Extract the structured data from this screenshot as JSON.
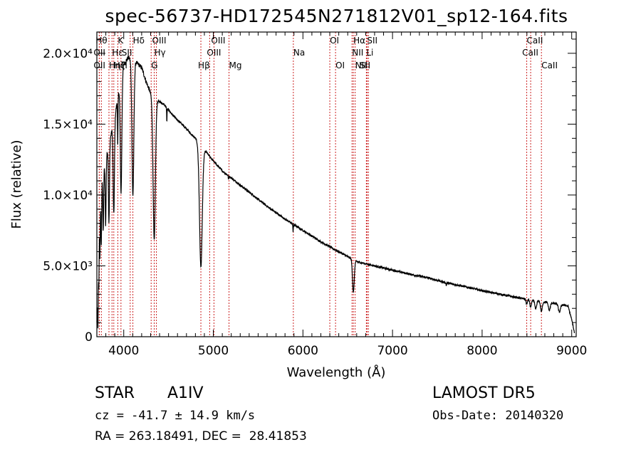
{
  "chart_data": {
    "type": "line",
    "title": "spec-56737-HD172545N271812V01_sp12-164.fits",
    "xlabel": "Wavelength (Å)",
    "ylabel": "Flux (relative)",
    "xlim": [
      3700,
      9050
    ],
    "ylim": [
      0,
      21500
    ],
    "x_ticks": [
      4000,
      5000,
      6000,
      7000,
      8000,
      9000
    ],
    "x_tick_labels": [
      "4000",
      "5000",
      "6000",
      "7000",
      "8000",
      "9000"
    ],
    "y_ticks": [
      0,
      5000,
      10000,
      15000,
      20000
    ],
    "y_tick_labels": [
      "0",
      "5.0×10³",
      "1.0×10⁴",
      "1.5×10⁴",
      "2.0×10⁴"
    ],
    "grid": false,
    "series": [
      {
        "continuum": [
          [
            3700,
            1000
          ],
          [
            3710,
            3000
          ],
          [
            3730,
            8000
          ],
          [
            3760,
            11000
          ],
          [
            3800,
            12500
          ],
          [
            3850,
            14000
          ],
          [
            3900,
            15500
          ],
          [
            3950,
            17500
          ],
          [
            4000,
            19200
          ],
          [
            4050,
            19700
          ],
          [
            4100,
            19500
          ],
          [
            4150,
            19300
          ],
          [
            4200,
            19000
          ],
          [
            4250,
            18000
          ],
          [
            4300,
            17200
          ],
          [
            4350,
            16700
          ],
          [
            4400,
            16600
          ],
          [
            4450,
            16400
          ],
          [
            4500,
            16000
          ],
          [
            4550,
            15600
          ],
          [
            4600,
            15300
          ],
          [
            4650,
            15000
          ],
          [
            4700,
            14700
          ],
          [
            4750,
            14300
          ],
          [
            4800,
            14000
          ],
          [
            4850,
            13600
          ],
          [
            4900,
            13200
          ],
          [
            4950,
            12800
          ],
          [
            5000,
            12400
          ],
          [
            5100,
            11700
          ],
          [
            5200,
            11200
          ],
          [
            5300,
            10700
          ],
          [
            5400,
            10200
          ],
          [
            5500,
            9700
          ],
          [
            5600,
            9200
          ],
          [
            5700,
            8750
          ],
          [
            5800,
            8300
          ],
          [
            5900,
            7900
          ],
          [
            6000,
            7500
          ],
          [
            6100,
            7100
          ],
          [
            6200,
            6700
          ],
          [
            6300,
            6350
          ],
          [
            6400,
            6000
          ],
          [
            6500,
            5650
          ],
          [
            6600,
            5300
          ],
          [
            6700,
            5150
          ],
          [
            6800,
            5000
          ],
          [
            7000,
            4700
          ],
          [
            7200,
            4400
          ],
          [
            7400,
            4150
          ],
          [
            7600,
            3800
          ],
          [
            7800,
            3550
          ],
          [
            8000,
            3250
          ],
          [
            8200,
            3000
          ],
          [
            8400,
            2750
          ],
          [
            8500,
            2650
          ],
          [
            8600,
            2550
          ],
          [
            8700,
            2450
          ],
          [
            8800,
            2350
          ],
          [
            8900,
            2250
          ],
          [
            8960,
            2150
          ],
          [
            9000,
            1200
          ],
          [
            9030,
            300
          ]
        ],
        "absorption": [
          {
            "x": 3712,
            "depth": 2800,
            "w": 4
          },
          {
            "x": 3722,
            "depth": 2600,
            "w": 4
          },
          {
            "x": 3734,
            "depth": 3000,
            "w": 4
          },
          {
            "x": 3750,
            "depth": 3500,
            "w": 5
          },
          {
            "x": 3771,
            "depth": 4000,
            "w": 6
          },
          {
            "x": 3798,
            "depth": 4500,
            "w": 7
          },
          {
            "x": 3835,
            "depth": 5500,
            "w": 8
          },
          {
            "x": 3889,
            "depth": 6500,
            "w": 10
          },
          {
            "x": 3933,
            "depth": 3500,
            "w": 4
          },
          {
            "x": 3970,
            "depth": 8000,
            "w": 12
          },
          {
            "x": 4102,
            "depth": 9500,
            "w": 15
          },
          {
            "x": 4340,
            "depth": 10000,
            "w": 18
          },
          {
            "x": 4861,
            "depth": 8600,
            "w": 22
          },
          {
            "x": 4481,
            "depth": 1000,
            "w": 3
          },
          {
            "x": 5169,
            "depth": 300,
            "w": 3
          },
          {
            "x": 5890,
            "depth": 500,
            "w": 4
          },
          {
            "x": 6563,
            "depth": 2300,
            "w": 14
          },
          {
            "x": 7600,
            "depth": 200,
            "w": 4
          },
          {
            "x": 8498,
            "depth": 350,
            "w": 10
          },
          {
            "x": 8542,
            "depth": 550,
            "w": 12
          },
          {
            "x": 8598,
            "depth": 600,
            "w": 14
          },
          {
            "x": 8662,
            "depth": 700,
            "w": 14
          },
          {
            "x": 8750,
            "depth": 550,
            "w": 14
          },
          {
            "x": 8863,
            "depth": 550,
            "w": 16
          }
        ]
      }
    ],
    "lines": [
      {
        "x": 3750,
        "row": 0,
        "label": "Hθ",
        "dx": -8
      },
      {
        "x": 3727,
        "row": 1,
        "label": "OII",
        "dx": -8
      },
      {
        "x": 3727,
        "row": 2,
        "label": "OII",
        "dx": -8
      },
      {
        "x": 3835,
        "row": 2,
        "label": "Hη",
        "dx": 0
      },
      {
        "x": 3869,
        "row": 1,
        "label": "Hε",
        "dx": 0
      },
      {
        "x": 3889,
        "row": 2,
        "label": "Hζ",
        "dx": 0
      },
      {
        "x": 3934,
        "row": 0,
        "label": "K",
        "dx": 0
      },
      {
        "x": 3969,
        "row": 2,
        "label": "H",
        "dx": 0
      },
      {
        "x": 4072,
        "row": 1,
        "label": "SII",
        "dx": -12
      },
      {
        "x": 4102,
        "row": 0,
        "label": "Hδ",
        "dx": 0
      },
      {
        "x": 4306,
        "row": 2,
        "label": "G",
        "dx": 0
      },
      {
        "x": 4340,
        "row": 1,
        "label": "Hγ",
        "dx": 0
      },
      {
        "x": 4364,
        "row": 0,
        "label": "OIII",
        "dx": -6
      },
      {
        "x": 4861,
        "row": 2,
        "label": "Hβ",
        "dx": -4
      },
      {
        "x": 4959,
        "row": 1,
        "label": "OIII",
        "dx": -4
      },
      {
        "x": 5007,
        "row": 0,
        "label": "OIII",
        "dx": -4
      },
      {
        "x": 5175,
        "row": 2,
        "label": "Mg",
        "dx": 0
      },
      {
        "x": 5893,
        "row": 1,
        "label": "Na",
        "dx": 0
      },
      {
        "x": 6300,
        "row": 0,
        "label": "OI",
        "dx": 0
      },
      {
        "x": 6364,
        "row": 2,
        "label": "OI",
        "dx": 0
      },
      {
        "x": 6548,
        "row": 1,
        "label": "NII",
        "dx": 0
      },
      {
        "x": 6563,
        "row": 0,
        "label": "Hα",
        "dx": 0
      },
      {
        "x": 6583,
        "row": 2,
        "label": "NII",
        "dx": 0
      },
      {
        "x": 6708,
        "row": 1,
        "label": "Li",
        "dx": 0
      },
      {
        "x": 6716,
        "row": 0,
        "label": "SII",
        "dx": 0
      },
      {
        "x": 6731,
        "row": 2,
        "label": "SII",
        "dx": -12
      },
      {
        "x": 8498,
        "row": 0,
        "label": "CaII",
        "dx": 0
      },
      {
        "x": 8542,
        "row": 1,
        "label": "CaII",
        "dx": -12
      },
      {
        "x": 8662,
        "row": 2,
        "label": "CaII",
        "dx": 0
      }
    ],
    "colors": {
      "spectrum": "#000000",
      "line_markers": "#cc2222",
      "axes": "#000000"
    }
  },
  "info": {
    "obj_class": "STAR",
    "obj_subclass": "A1IV",
    "survey": "LAMOST DR5",
    "cz": "cz = -41.7 ± 14.9 km/s",
    "obs_date": "Obs-Date: 20140320",
    "radec": "RA = 263.18491, DEC =  28.41853"
  }
}
